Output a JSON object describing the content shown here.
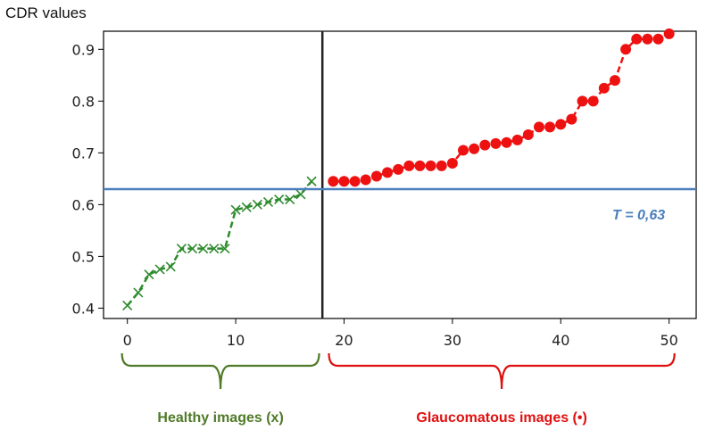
{
  "chart_data": {
    "type": "scatter",
    "ylabel": "CDR values",
    "xticks": [
      0,
      10,
      20,
      30,
      40,
      50
    ],
    "yticks": [
      "0.4",
      "0.5",
      "0.6",
      "0.7",
      "0.8",
      "0.9"
    ],
    "xlim": [
      -2.2,
      52.5
    ],
    "ylim": [
      0.38,
      0.935
    ],
    "threshold": {
      "value": 0.63,
      "label": "T = 0,63",
      "color": "#4a7fbd"
    },
    "divider_x": 18,
    "groups": [
      {
        "name": "Healthy images (x)",
        "x_range": [
          -0.5,
          17.7
        ]
      },
      {
        "name": "Glaucomatous images (•)",
        "x_range": [
          18.6,
          50.5
        ]
      }
    ],
    "series": [
      {
        "marker": "x",
        "line": "dashed",
        "color": "#2e8b2e",
        "x": [
          0,
          1,
          2,
          3,
          4,
          5,
          6,
          7,
          8,
          9,
          10,
          11,
          12,
          13,
          14,
          15,
          16,
          17
        ],
        "values": [
          0.405,
          0.43,
          0.465,
          0.475,
          0.48,
          0.515,
          0.515,
          0.515,
          0.515,
          0.515,
          0.59,
          0.595,
          0.6,
          0.605,
          0.61,
          0.61,
          0.62,
          0.645
        ]
      },
      {
        "marker": "circle",
        "line": "dashed",
        "color": "#ee1111",
        "x": [
          19,
          20,
          21,
          22,
          23,
          24,
          25,
          26,
          27,
          28,
          29,
          30,
          31,
          32,
          33,
          34,
          35,
          36,
          37,
          38,
          39,
          40,
          41,
          42,
          43,
          44,
          45,
          46,
          47,
          48,
          49,
          50
        ],
        "values": [
          0.645,
          0.645,
          0.645,
          0.648,
          0.655,
          0.662,
          0.668,
          0.675,
          0.675,
          0.675,
          0.675,
          0.68,
          0.705,
          0.708,
          0.715,
          0.718,
          0.72,
          0.725,
          0.735,
          0.75,
          0.75,
          0.755,
          0.765,
          0.8,
          0.8,
          0.825,
          0.84,
          0.9,
          0.92,
          0.92,
          0.92,
          0.93
        ]
      }
    ],
    "group_colors": [
      "#4f7a28",
      "#e01010"
    ]
  }
}
